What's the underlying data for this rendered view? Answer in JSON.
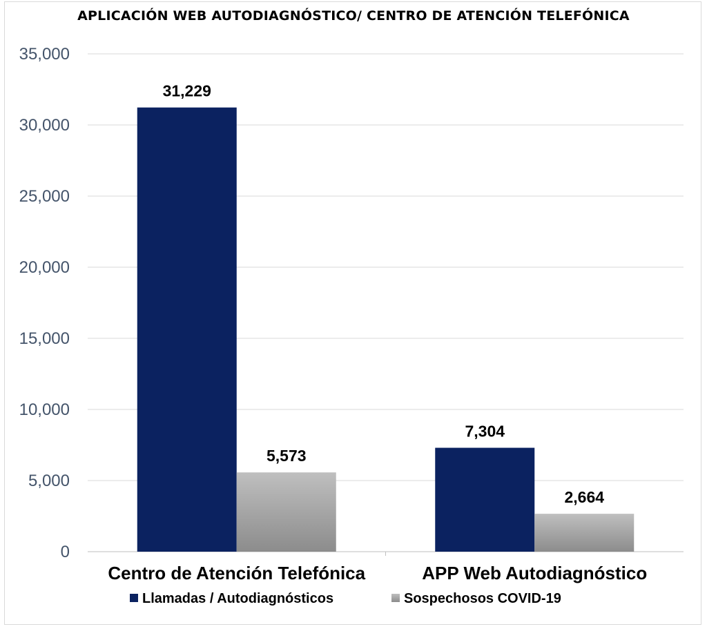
{
  "chart_data": {
    "type": "bar",
    "title": "APLICACIÓN WEB AUTODIAGNÓSTICO/ CENTRO DE ATENCIÓN TELEFÓNICA",
    "categories": [
      "Centro de Atención Telefónica",
      "APP Web Autodiagnóstico"
    ],
    "series": [
      {
        "name": "Llamadas / Autodiagnósticos",
        "values": [
          31229,
          7304
        ],
        "labels": [
          "31,229",
          "7,304"
        ],
        "color": "#0b2260"
      },
      {
        "name": "Sospechosos COVID-19",
        "values": [
          5573,
          2664
        ],
        "labels": [
          "5,573",
          "2,664"
        ],
        "color": "#a6a6a6"
      }
    ],
    "yticks": [
      0,
      5000,
      10000,
      15000,
      20000,
      25000,
      30000,
      35000
    ],
    "ytick_labels": [
      "0",
      "5,000",
      "10,000",
      "15,000",
      "20,000",
      "25,000",
      "30,000",
      "35,000"
    ],
    "ylim": [
      0,
      35000
    ],
    "xlabel": "",
    "ylabel": "",
    "grid": true,
    "legend": "bottom"
  }
}
